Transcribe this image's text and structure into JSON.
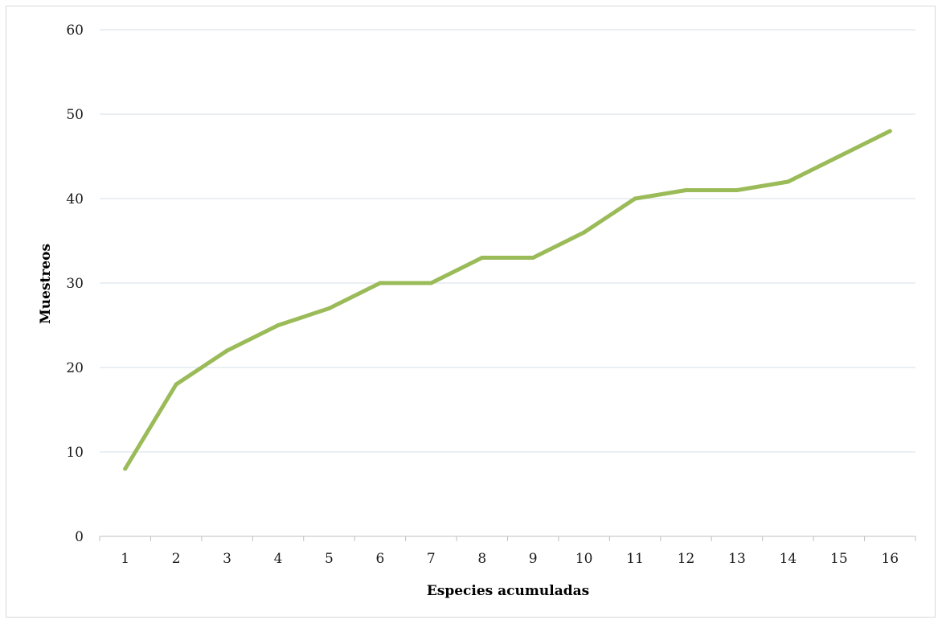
{
  "chart_data": {
    "type": "line",
    "title": "",
    "xlabel": "Especies acumuladas",
    "ylabel": "Muestreos",
    "categories": [
      "1",
      "2",
      "3",
      "4",
      "5",
      "6",
      "7",
      "8",
      "9",
      "10",
      "11",
      "12",
      "13",
      "14",
      "15",
      "16"
    ],
    "series": [
      {
        "values": [
          8,
          18,
          22,
          25,
          27,
          30,
          30,
          33,
          33,
          36,
          40,
          41,
          41,
          42,
          45,
          48
        ]
      }
    ],
    "ylim": [
      0,
      60
    ],
    "yticks": [
      0,
      10,
      20,
      30,
      40,
      50,
      60
    ],
    "grid": true,
    "legend": "none",
    "colors": {
      "line": "#9bbb59",
      "grid": "#d6dfe9",
      "axis": "#bfbfbf"
    }
  }
}
